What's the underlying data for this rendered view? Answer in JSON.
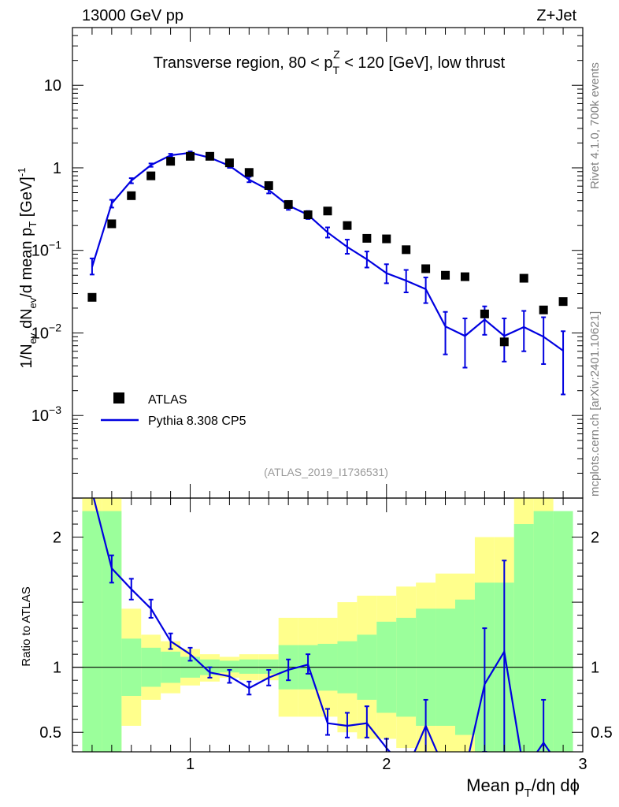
{
  "header": {
    "left": "13000 GeV pp",
    "right": "Z+Jet"
  },
  "side_labels": {
    "rivet": "Rivet 4.1.0,  700k events",
    "url": "mcplots.cern.ch [arXiv:2401.10621]"
  },
  "colors": {
    "data": "#000000",
    "mc": "#0000e0",
    "band_inner": "#9bff9b",
    "band_outer": "#ffff8c",
    "axis": "#000000"
  },
  "chart_data": [
    {
      "type": "scatter",
      "panel": "main",
      "title": "Transverse region, 80 < p_T^Z < 120 [GeV], low thrust",
      "title_parts": {
        "pre": "Transverse region, 80 < p",
        "sub": "T",
        "sup": "Z",
        "post": " < 120 [GeV], low thrust"
      },
      "ylabel": "1/N_ev dN_ev/d mean p_T [GeV]^-1",
      "ylabel_parts": [
        "1/N",
        "ev",
        " dN",
        "ev",
        "/d mean p",
        "T",
        " [GeV]",
        "-1"
      ],
      "yscale": "log",
      "xlim": [
        0.4,
        3.0
      ],
      "ylim": [
        0.0001,
        50
      ],
      "ytick_labels": [
        {
          "v": 10,
          "base": "10",
          "exp": ""
        },
        {
          "v": 1,
          "base": "1",
          "exp": ""
        },
        {
          "v": 0.1,
          "base": "10",
          "exp": "−1"
        },
        {
          "v": 0.01,
          "base": "10",
          "exp": "−2"
        },
        {
          "v": 0.001,
          "base": "10",
          "exp": "−3"
        }
      ],
      "legend": {
        "position": "lower-left",
        "entries": [
          "ATLAS",
          "Pythia 8.308 CP5"
        ]
      },
      "reference": "(ATLAS_2019_I1736531)",
      "series": [
        {
          "name": "ATLAS",
          "style": "markers",
          "x": [
            0.5,
            0.6,
            0.7,
            0.8,
            0.9,
            1.0,
            1.1,
            1.2,
            1.3,
            1.4,
            1.5,
            1.6,
            1.7,
            1.8,
            1.9,
            2.0,
            2.1,
            2.2,
            2.3,
            2.4,
            2.5,
            2.6,
            2.7,
            2.8,
            2.9
          ],
          "y": [
            0.027,
            0.21,
            0.46,
            0.8,
            1.2,
            1.38,
            1.38,
            1.15,
            0.88,
            0.61,
            0.36,
            0.27,
            0.3,
            0.2,
            0.14,
            0.138,
            0.102,
            0.06,
            0.05,
            0.048,
            0.017,
            0.0078,
            0.046,
            0.019,
            0.024
          ]
        },
        {
          "name": "Pythia 8.308 CP5",
          "style": "line",
          "x": [
            0.5,
            0.6,
            0.7,
            0.8,
            0.9,
            1.0,
            1.1,
            1.2,
            1.3,
            1.4,
            1.5,
            1.6,
            1.7,
            1.8,
            1.9,
            2.0,
            2.1,
            2.2,
            2.3,
            2.4,
            2.5,
            2.6,
            2.7,
            2.8,
            2.9
          ],
          "y": [
            0.063,
            0.37,
            0.7,
            1.08,
            1.42,
            1.52,
            1.33,
            1.06,
            0.72,
            0.54,
            0.35,
            0.27,
            0.165,
            0.11,
            0.078,
            0.053,
            0.043,
            0.034,
            0.012,
            0.0092,
            0.0145,
            0.0092,
            0.0118,
            0.009,
            0.0061
          ],
          "err_lo": [
            0.051,
            0.33,
            0.65,
            1.03,
            1.37,
            1.47,
            1.28,
            1.0,
            0.67,
            0.49,
            0.31,
            0.24,
            0.143,
            0.091,
            0.062,
            0.04,
            0.031,
            0.023,
            0.0055,
            0.0038,
            0.0095,
            0.0045,
            0.006,
            0.0042,
            0.0018
          ],
          "err_hi": [
            0.08,
            0.41,
            0.75,
            1.13,
            1.48,
            1.58,
            1.38,
            1.12,
            0.78,
            0.6,
            0.39,
            0.3,
            0.19,
            0.135,
            0.097,
            0.068,
            0.058,
            0.047,
            0.018,
            0.015,
            0.021,
            0.015,
            0.0185,
            0.0155,
            0.0105
          ]
        }
      ]
    },
    {
      "type": "line",
      "panel": "ratio",
      "ylabel": "Ratio to ATLAS",
      "xlabel": "Mean p_T/dη dϕ",
      "xlabel_parts": [
        "Mean p",
        "T",
        "/dη dϕ"
      ],
      "xlim": [
        0.4,
        3.0
      ],
      "ylim": [
        0.35,
        2.3
      ],
      "xtick_labels": [
        "1",
        "2",
        "3"
      ],
      "xticks": [
        1,
        2,
        3
      ],
      "ytick_labels": [
        "2",
        "1",
        "0.5"
      ],
      "yticks": [
        2,
        1,
        0.5
      ],
      "bands": {
        "edges": [
          0.45,
          0.55,
          0.65,
          0.75,
          0.85,
          0.95,
          1.05,
          1.15,
          1.25,
          1.35,
          1.45,
          1.55,
          1.65,
          1.75,
          1.85,
          1.95,
          2.05,
          2.15,
          2.25,
          2.35,
          2.45,
          2.55,
          2.65,
          2.75,
          2.85,
          2.95
        ],
        "inner_lo": [
          0.2,
          0.2,
          0.78,
          0.85,
          0.88,
          0.92,
          0.94,
          0.96,
          0.95,
          0.95,
          0.83,
          0.83,
          0.82,
          0.8,
          0.75,
          0.65,
          0.62,
          0.55,
          0.55,
          0.48,
          0.35,
          0.35,
          0.35,
          0.35,
          0.35
        ],
        "inner_hi": [
          2.2,
          2.2,
          1.22,
          1.15,
          1.12,
          1.08,
          1.06,
          1.05,
          1.06,
          1.06,
          1.17,
          1.17,
          1.18,
          1.2,
          1.25,
          1.35,
          1.38,
          1.45,
          1.45,
          1.52,
          1.65,
          1.65,
          2.1,
          2.2,
          2.2
        ],
        "outer_lo": [
          0.2,
          0.2,
          0.55,
          0.75,
          0.8,
          0.86,
          0.89,
          0.92,
          0.9,
          0.9,
          0.62,
          0.62,
          0.62,
          0.5,
          0.45,
          0.45,
          0.38,
          0.35,
          0.35,
          0.35,
          0.35,
          0.35,
          0.35,
          0.35,
          0.35
        ],
        "outer_hi": [
          2.3,
          2.3,
          1.45,
          1.25,
          1.2,
          1.14,
          1.1,
          1.08,
          1.1,
          1.1,
          1.38,
          1.38,
          1.38,
          1.5,
          1.55,
          1.55,
          1.62,
          1.65,
          1.72,
          1.72,
          2.0,
          2.0,
          2.3,
          2.3,
          2.1
        ]
      },
      "series": [
        {
          "name": "Pythia 8.308 CP5 / ATLAS",
          "x": [
            0.5,
            0.6,
            0.7,
            0.8,
            0.9,
            1.0,
            1.1,
            1.2,
            1.3,
            1.4,
            1.5,
            1.6,
            1.7,
            1.8,
            1.9,
            2.0,
            2.1,
            2.2,
            2.3,
            2.4,
            2.5,
            2.6,
            2.7,
            2.8,
            2.9
          ],
          "y": [
            2.35,
            1.76,
            1.6,
            1.45,
            1.2,
            1.1,
            0.96,
            0.93,
            0.84,
            0.92,
            0.98,
            1.02,
            0.57,
            0.55,
            0.57,
            0.38,
            0.2,
            0.55,
            0.2,
            0.2,
            0.87,
            1.12,
            0.2,
            0.42,
            0.2
          ],
          "err_lo": [
            2.35,
            1.65,
            1.52,
            1.38,
            1.14,
            1.05,
            0.92,
            0.88,
            0.79,
            0.86,
            0.9,
            0.95,
            0.48,
            0.46,
            0.46,
            0.3,
            0.2,
            0.25,
            0.2,
            0.2,
            0.35,
            0.2,
            0.2,
            0.2,
            0.2
          ],
          "err_hi": [
            2.35,
            1.86,
            1.68,
            1.52,
            1.26,
            1.15,
            1.0,
            0.98,
            0.89,
            0.98,
            1.06,
            1.1,
            0.68,
            0.65,
            0.7,
            0.45,
            0.2,
            0.75,
            0.2,
            0.2,
            1.3,
            1.82,
            0.2,
            0.75,
            0.2
          ]
        }
      ]
    }
  ]
}
